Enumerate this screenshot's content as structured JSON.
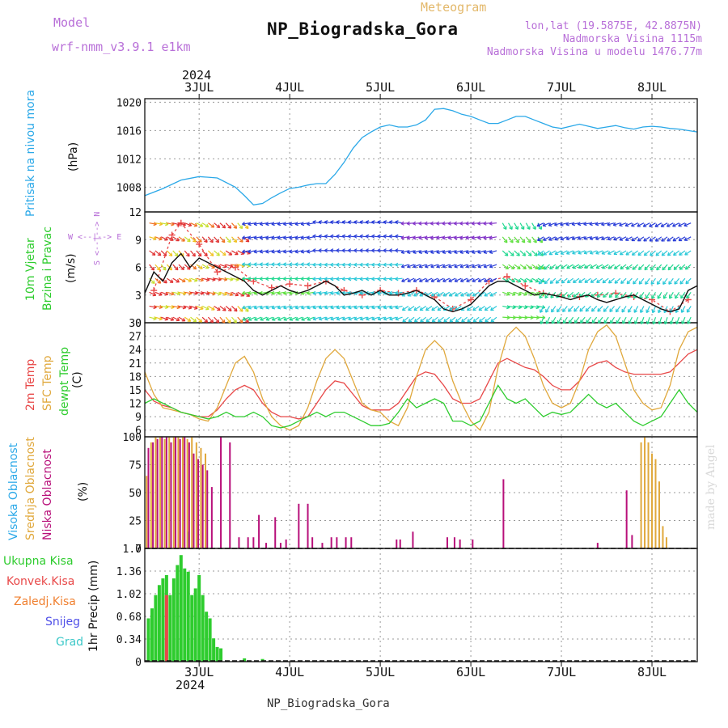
{
  "header": {
    "model_label": "Model",
    "model_name": "wrf-nmm_v3.9.1 e1km",
    "title": "NP_Biogradska_Gora",
    "meteogram": "Meteogram",
    "coords": "lon,lat (19.5875E, 42.8875N)",
    "altitude": "Nadmorska Visina 1115m",
    "model_altitude": "Nadmorska Visina u modelu 1476.77m"
  },
  "footer": {
    "station": "NP_Biogradska_Gora",
    "credit": "made by Angel"
  },
  "time_axis": {
    "year": "2024",
    "days": [
      "3JUL",
      "4JUL",
      "5JUL",
      "6JUL",
      "7JUL",
      "8JUL"
    ]
  },
  "colors": {
    "pressure": "#2aa8e8",
    "t2m": "#e84848",
    "sfc": "#e0a83c",
    "dewpoint": "#2ecc2e",
    "high_cloud": "#2aa8e8",
    "mid_cloud": "#e0a83c",
    "low_cloud": "#b8107a",
    "total_precip": "#2ecc2e",
    "convective": "#e84848",
    "freezing": "#f08030",
    "snow": "#5050e8",
    "graupel": "#3cc8c8",
    "wind_speed": "#111111",
    "gust": "#e84848"
  },
  "panels": {
    "pressure": {
      "labels": [
        "Pritisak na nivou mora"
      ],
      "unit": "(hPa)"
    },
    "wind": {
      "labels": [
        "10m Vjetar",
        "Brzina i Pravac"
      ],
      "unit": "(m/s)",
      "compass_ns": "S <--|--> N",
      "compass_we": "W <--|--> E"
    },
    "temp": {
      "labels": [
        "2m Temp",
        "SFC Temp",
        "dewpt Temp"
      ],
      "unit": "(C)"
    },
    "cloud": {
      "labels": [
        "Visoka Oblacnost",
        "Srednja Oblacnost",
        "Niska Oblacnost"
      ],
      "unit": "(%)"
    },
    "precip": {
      "legend": [
        "Ukupna Kisa",
        "Konvek.Kisa",
        "Zaledj.Kisa",
        "Snijeg",
        "Grad"
      ],
      "unit": "1hr Precip (mm)"
    }
  },
  "chart_data": [
    {
      "type": "line",
      "panel": "pressure",
      "xlim": [
        -0.6,
        5.5
      ],
      "ylim": [
        1004.5,
        1020.5
      ],
      "yticks": [
        1008,
        1012,
        1016,
        1020
      ],
      "series": [
        {
          "name": "Pritisak na nivou mora",
          "x": [
            -0.6,
            -0.4,
            -0.2,
            0.0,
            0.2,
            0.4,
            0.5,
            0.6,
            0.7,
            0.8,
            0.9,
            1.0,
            1.1,
            1.2,
            1.3,
            1.4,
            1.5,
            1.6,
            1.7,
            1.8,
            1.9,
            2.0,
            2.1,
            2.2,
            2.3,
            2.4,
            2.5,
            2.6,
            2.7,
            2.8,
            2.9,
            3.0,
            3.1,
            3.2,
            3.3,
            3.4,
            3.5,
            3.6,
            3.7,
            3.8,
            3.9,
            4.0,
            4.1,
            4.2,
            4.3,
            4.4,
            4.5,
            4.6,
            4.7,
            4.8,
            4.9,
            5.0,
            5.1,
            5.2,
            5.3,
            5.4,
            5.5
          ],
          "y": [
            1006.8,
            1007.8,
            1009.0,
            1009.5,
            1009.3,
            1008.0,
            1006.8,
            1005.5,
            1005.7,
            1006.5,
            1007.2,
            1007.8,
            1008.0,
            1008.3,
            1008.5,
            1008.5,
            1009.8,
            1011.5,
            1013.5,
            1015.0,
            1015.8,
            1016.5,
            1016.8,
            1016.5,
            1016.5,
            1016.8,
            1017.5,
            1019.0,
            1019.1,
            1018.8,
            1018.3,
            1018.0,
            1017.5,
            1017.0,
            1017.0,
            1017.5,
            1018.0,
            1018.0,
            1017.5,
            1017.0,
            1016.5,
            1016.3,
            1016.6,
            1016.9,
            1016.6,
            1016.3,
            1016.5,
            1016.7,
            1016.4,
            1016.2,
            1016.5,
            1016.6,
            1016.5,
            1016.3,
            1016.2,
            1016.0,
            1015.8
          ]
        }
      ]
    },
    {
      "type": "line",
      "panel": "wind",
      "xlim": [
        -0.6,
        5.5
      ],
      "ylim": [
        0,
        12
      ],
      "yticks": [
        0,
        3,
        6,
        9,
        12
      ],
      "series": [
        {
          "name": "wind speed",
          "x": [
            -0.6,
            -0.5,
            -0.4,
            -0.3,
            -0.2,
            -0.1,
            0.0,
            0.1,
            0.2,
            0.3,
            0.4,
            0.5,
            0.6,
            0.7,
            0.8,
            0.9,
            1.0,
            1.1,
            1.2,
            1.3,
            1.4,
            1.5,
            1.6,
            1.7,
            1.8,
            1.9,
            2.0,
            2.1,
            2.2,
            2.3,
            2.4,
            2.5,
            2.6,
            2.7,
            2.8,
            2.9,
            3.0,
            3.1,
            3.2,
            3.3,
            3.4,
            3.5,
            3.6,
            3.7,
            3.8,
            3.9,
            4.0,
            4.1,
            4.2,
            4.3,
            4.4,
            4.5,
            4.6,
            4.7,
            4.8,
            4.9,
            5.0,
            5.1,
            5.2,
            5.3,
            5.4,
            5.5
          ],
          "y": [
            3.2,
            5.5,
            4.5,
            6.5,
            7.5,
            6.0,
            7.0,
            6.5,
            6.0,
            5.5,
            5.0,
            4.5,
            3.5,
            3.0,
            3.5,
            4.0,
            3.5,
            3.2,
            3.5,
            4.0,
            4.5,
            4.0,
            3.0,
            3.2,
            3.5,
            3.0,
            3.5,
            3.0,
            3.0,
            3.2,
            3.5,
            3.0,
            2.5,
            1.5,
            1.2,
            1.5,
            2.0,
            3.0,
            4.0,
            4.5,
            4.5,
            4.0,
            3.5,
            3.0,
            3.2,
            3.0,
            2.8,
            2.5,
            2.8,
            3.0,
            2.5,
            2.2,
            2.5,
            2.8,
            3.0,
            2.5,
            2.0,
            1.5,
            1.2,
            1.5,
            3.5,
            4.0
          ]
        },
        {
          "name": "gust",
          "x": [
            -0.5,
            -0.3,
            -0.2,
            0.0,
            0.2,
            0.4,
            0.6,
            0.8,
            1.0,
            1.2,
            1.4,
            1.6,
            1.8,
            2.0,
            2.2,
            2.4,
            2.6,
            2.8,
            3.0,
            3.2,
            3.4,
            3.6,
            3.8,
            4.0,
            4.2,
            4.4,
            4.6,
            4.8,
            5.0,
            5.2,
            5.4
          ],
          "y": [
            3.5,
            9.5,
            10.8,
            8.5,
            5.5,
            6.0,
            4.5,
            3.8,
            4.2,
            4.0,
            4.5,
            3.5,
            3.0,
            3.5,
            3.2,
            3.5,
            2.8,
            1.5,
            2.5,
            4.5,
            5.0,
            4.0,
            3.2,
            3.0,
            2.8,
            3.0,
            3.2,
            2.8,
            2.5,
            1.2,
            2.5
          ]
        }
      ]
    },
    {
      "type": "line",
      "panel": "temp",
      "xlim": [
        -0.6,
        5.5
      ],
      "ylim": [
        4.5,
        30
      ],
      "yticks": [
        6,
        9,
        12,
        15,
        18,
        21,
        24,
        27,
        30
      ],
      "series": [
        {
          "name": "2m Temp",
          "x": [
            -0.6,
            -0.5,
            -0.4,
            -0.3,
            -0.2,
            -0.1,
            0.0,
            0.1,
            0.2,
            0.3,
            0.4,
            0.5,
            0.6,
            0.7,
            0.8,
            0.9,
            1.0,
            1.1,
            1.2,
            1.3,
            1.4,
            1.5,
            1.6,
            1.7,
            1.8,
            1.9,
            2.0,
            2.1,
            2.2,
            2.3,
            2.4,
            2.5,
            2.6,
            2.7,
            2.8,
            2.9,
            3.0,
            3.1,
            3.2,
            3.3,
            3.4,
            3.5,
            3.6,
            3.7,
            3.8,
            3.9,
            4.0,
            4.1,
            4.2,
            4.3,
            4.4,
            4.5,
            4.6,
            4.7,
            4.8,
            4.9,
            5.0,
            5.1,
            5.2,
            5.3,
            5.4,
            5.5
          ],
          "y": [
            15,
            12.5,
            11.5,
            11,
            10,
            9.5,
            9,
            9,
            10.5,
            13,
            15,
            16,
            15,
            12,
            10,
            9,
            9,
            8.5,
            9,
            12,
            15,
            17,
            16.5,
            14,
            11.5,
            10.5,
            10.5,
            10.5,
            12,
            15,
            18,
            19,
            18.5,
            16,
            13,
            12,
            12,
            13,
            17,
            21,
            22,
            21,
            20,
            19.5,
            18,
            16,
            15,
            15,
            17,
            20,
            21,
            21.5,
            20,
            19,
            18.5,
            18.5,
            18.5,
            18.5,
            19,
            21,
            23,
            24
          ]
        },
        {
          "name": "SFC Temp",
          "x": [
            -0.6,
            -0.5,
            -0.4,
            -0.3,
            -0.2,
            -0.1,
            0.0,
            0.1,
            0.2,
            0.3,
            0.4,
            0.5,
            0.6,
            0.7,
            0.8,
            0.9,
            1.0,
            1.1,
            1.2,
            1.3,
            1.4,
            1.5,
            1.6,
            1.7,
            1.8,
            1.9,
            2.0,
            2.1,
            2.2,
            2.3,
            2.4,
            2.5,
            2.6,
            2.7,
            2.8,
            2.9,
            3.0,
            3.1,
            3.2,
            3.3,
            3.4,
            3.5,
            3.6,
            3.7,
            3.8,
            3.9,
            4.0,
            4.1,
            4.2,
            4.3,
            4.4,
            4.5,
            4.6,
            4.7,
            4.8,
            4.9,
            5.0,
            5.1,
            5.2,
            5.3,
            5.4,
            5.5
          ],
          "y": [
            19,
            14,
            11,
            10.5,
            10,
            9.5,
            8.5,
            8,
            11,
            16,
            21,
            22.5,
            19,
            13,
            9,
            7,
            6,
            7,
            11,
            17,
            22,
            24,
            22,
            17,
            12,
            10.5,
            10,
            8,
            7,
            11,
            18,
            24,
            26,
            24,
            17,
            12,
            8,
            6,
            10,
            20,
            27,
            29,
            27,
            22,
            16,
            12,
            11,
            12,
            17,
            24,
            28,
            29.5,
            27,
            21,
            15,
            12,
            10.5,
            11,
            16,
            24,
            28,
            29
          ]
        },
        {
          "name": "dewpt Temp",
          "x": [
            -0.6,
            -0.5,
            -0.4,
            -0.3,
            -0.2,
            -0.1,
            0.0,
            0.1,
            0.2,
            0.3,
            0.4,
            0.5,
            0.6,
            0.7,
            0.8,
            0.9,
            1.0,
            1.1,
            1.2,
            1.3,
            1.4,
            1.5,
            1.6,
            1.7,
            1.8,
            1.9,
            2.0,
            2.1,
            2.2,
            2.3,
            2.4,
            2.5,
            2.6,
            2.7,
            2.8,
            2.9,
            3.0,
            3.1,
            3.2,
            3.3,
            3.4,
            3.5,
            3.6,
            3.7,
            3.8,
            3.9,
            4.0,
            4.1,
            4.2,
            4.3,
            4.4,
            4.5,
            4.6,
            4.7,
            4.8,
            4.9,
            5.0,
            5.1,
            5.2,
            5.3,
            5.4,
            5.5
          ],
          "y": [
            12,
            13,
            12,
            11,
            10,
            9.5,
            9,
            8.5,
            9,
            10,
            9,
            9,
            10,
            9,
            7,
            6.5,
            7,
            8,
            9,
            10,
            9,
            10,
            10,
            9,
            8,
            7,
            7,
            7.5,
            10,
            13,
            11,
            12,
            13,
            12,
            8,
            8,
            7,
            8,
            12,
            16,
            13,
            12,
            13,
            11,
            9,
            10,
            9.5,
            10,
            12,
            14,
            12,
            11,
            12,
            10,
            8,
            7,
            8,
            9,
            12,
            15,
            12,
            10
          ]
        }
      ]
    },
    {
      "type": "bar",
      "panel": "cloud",
      "xlim": [
        -0.6,
        5.5
      ],
      "ylim": [
        0,
        100
      ],
      "yticks": [
        0,
        25,
        50,
        75,
        100
      ],
      "series": [
        {
          "name": "Visoka Oblacnost",
          "x": [
            -0.18,
            -0.12
          ],
          "values": [
            70,
            15
          ]
        },
        {
          "name": "Srednja Oblacnost",
          "x": [
            -0.58,
            -0.53,
            -0.48,
            -0.43,
            -0.38,
            -0.33,
            -0.28,
            -0.23,
            -0.18,
            -0.13,
            -0.08,
            -0.03,
            0.02,
            0.07,
            4.88,
            4.92,
            4.96,
            5.0,
            5.04,
            5.08,
            5.12,
            5.16
          ],
          "values": [
            65,
            95,
            100,
            100,
            98,
            100,
            100,
            100,
            100,
            98,
            100,
            95,
            90,
            85,
            95,
            100,
            95,
            85,
            80,
            60,
            20,
            10
          ]
        },
        {
          "name": "Niska Oblacnost",
          "x": [
            -0.56,
            -0.51,
            -0.46,
            -0.41,
            -0.36,
            -0.31,
            -0.26,
            -0.21,
            -0.16,
            -0.11,
            -0.06,
            -0.01,
            0.04,
            0.09,
            0.14,
            0.24,
            0.34,
            0.44,
            0.54,
            0.6,
            0.66,
            0.74,
            0.84,
            0.9,
            0.96,
            1.1,
            1.2,
            1.25,
            1.36,
            1.46,
            1.52,
            1.62,
            1.68,
            2.18,
            2.22,
            2.36,
            2.74,
            2.82,
            2.88,
            3.02,
            3.36,
            4.4,
            4.72,
            4.78
          ],
          "values": [
            90,
            95,
            98,
            100,
            100,
            95,
            100,
            98,
            100,
            95,
            85,
            80,
            75,
            70,
            55,
            100,
            95,
            10,
            10,
            10,
            30,
            5,
            28,
            5,
            8,
            40,
            40,
            10,
            5,
            10,
            10,
            10,
            10,
            8,
            8,
            15,
            10,
            10,
            8,
            8,
            62,
            5,
            52,
            12
          ]
        }
      ]
    },
    {
      "type": "bar",
      "panel": "precip",
      "xlim": [
        -0.6,
        5.5
      ],
      "ylim": [
        0,
        1.7
      ],
      "yticks": [
        0,
        0.34,
        0.68,
        1.02,
        1.36,
        1.7
      ],
      "series": [
        {
          "name": "Ukupna Kisa",
          "x": [
            -0.56,
            -0.52,
            -0.48,
            -0.44,
            -0.4,
            -0.36,
            -0.32,
            -0.28,
            -0.24,
            -0.2,
            -0.16,
            -0.12,
            -0.08,
            -0.04,
            0.0,
            0.04,
            0.08,
            0.12,
            0.16,
            0.2,
            0.24,
            0.5,
            0.7
          ],
          "values": [
            0.65,
            0.8,
            1.0,
            1.15,
            1.25,
            1.3,
            1.0,
            1.25,
            1.45,
            1.6,
            1.4,
            1.35,
            1.0,
            1.1,
            1.3,
            1.0,
            0.75,
            0.65,
            0.35,
            0.22,
            0.2,
            0.05,
            0.04
          ]
        },
        {
          "name": "Konvek.Kisa",
          "x": [
            -0.36
          ],
          "values": [
            1.0
          ]
        },
        {
          "name": "Zaledj.Kisa",
          "x": [],
          "values": []
        },
        {
          "name": "Snijeg",
          "x": [],
          "values": []
        },
        {
          "name": "Grad",
          "x": [],
          "values": []
        }
      ]
    }
  ]
}
